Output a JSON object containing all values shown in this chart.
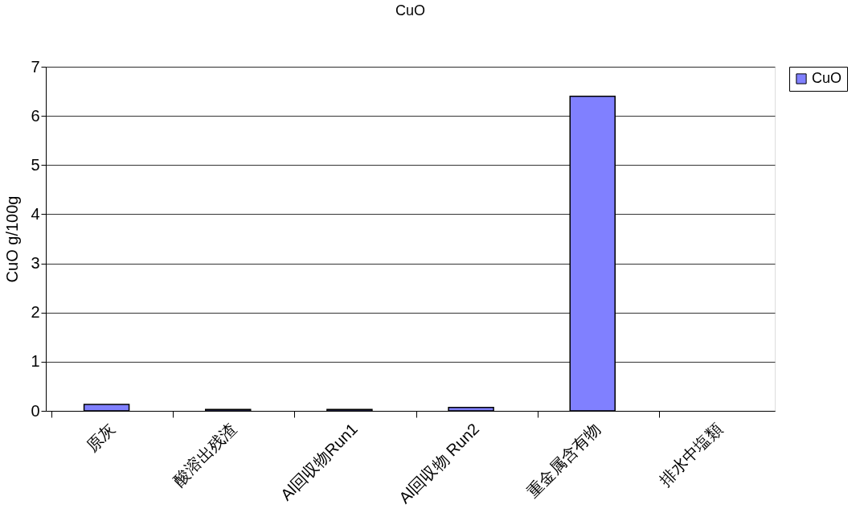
{
  "chart_data": {
    "type": "bar",
    "title": "CuO",
    "ylabel": "CuO  g/100g",
    "categories": [
      "原灰",
      "酸溶出残渣",
      "Al回収物Run1",
      "Al回収物 Run2",
      "重金属含有物",
      "排水中塩類"
    ],
    "series": [
      {
        "name": "CuO",
        "color": "#8080ff",
        "values": [
          0.13,
          0.03,
          0.03,
          0.07,
          6.4,
          null
        ]
      }
    ],
    "ylim": [
      0,
      7
    ],
    "yticks": [
      0,
      1,
      2,
      3,
      4,
      5,
      6,
      7
    ],
    "grid": "y",
    "legend": "right"
  }
}
